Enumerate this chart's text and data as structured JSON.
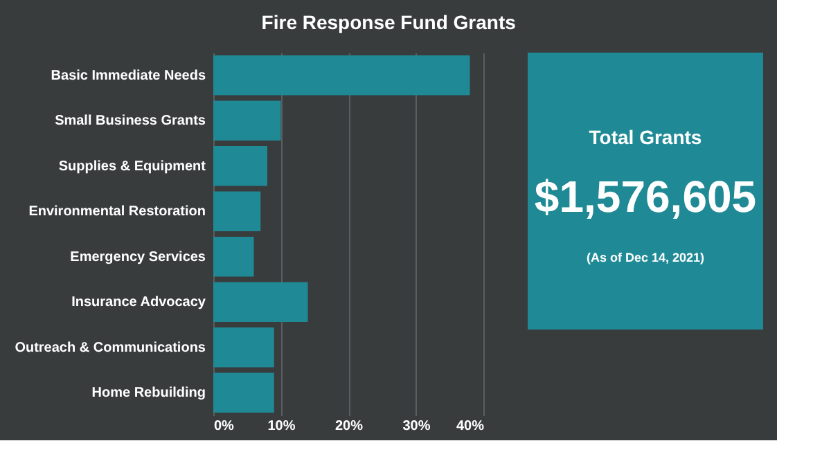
{
  "chart_data": [
    {
      "type": "bar",
      "orientation": "horizontal",
      "title": "Fire Response Fund Grants",
      "categories": [
        "Basic Immediate Needs",
        "Small Business Grants",
        "Supplies & Equipment",
        "Environmental Restoration",
        "Emergency Services",
        "Insurance Advocacy",
        "Outreach & Communications",
        "Home Rebuilding"
      ],
      "values": [
        38,
        10,
        8,
        7,
        6,
        14,
        9,
        9
      ],
      "color": "#1f8a96",
      "xlim": [
        0,
        40
      ],
      "xticks": [
        {
          "value": 0,
          "label": "0%"
        },
        {
          "value": 10,
          "label": "10%"
        },
        {
          "value": 20,
          "label": "20%"
        },
        {
          "value": 30,
          "label": "30%"
        },
        {
          "value": 40,
          "label": "40%"
        }
      ],
      "grid": "x"
    },
    {
      "type": "other",
      "title": "Total Grants",
      "color": "#1f8a96",
      "annotations": [
        "$1,576,605",
        "(As of Dec 14, 2021)"
      ]
    }
  ]
}
